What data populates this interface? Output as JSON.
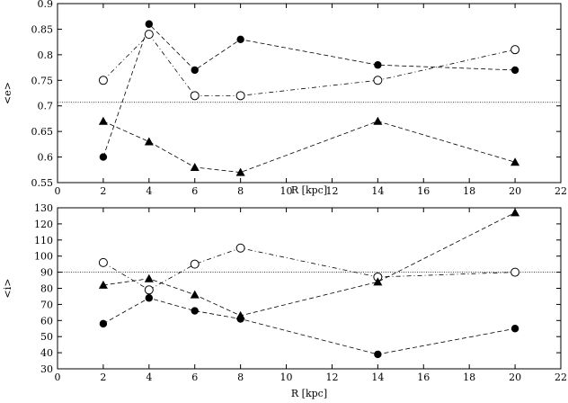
{
  "chart_data": [
    {
      "type": "line",
      "xlabel": "R [kpc]",
      "ylabel": "<e>",
      "xlim": [
        0,
        22
      ],
      "ylim": [
        0.55,
        0.9
      ],
      "xticks": [
        "0",
        "2",
        "4",
        "6",
        "8",
        "10",
        "12",
        "14",
        "16",
        "18",
        "20",
        "22"
      ],
      "yticks": [
        "0.55",
        "0.6",
        "0.65",
        "0.7",
        "0.75",
        "0.8",
        "0.85",
        "0.9"
      ],
      "grid": false,
      "reference_line": 0.707,
      "series": [
        {
          "marker": "filled-circle",
          "x": [
            2,
            4,
            6,
            8,
            14,
            20
          ],
          "y": [
            0.6,
            0.86,
            0.77,
            0.83,
            0.78,
            0.77
          ]
        },
        {
          "marker": "open-circle",
          "x": [
            2,
            4,
            6,
            8,
            14,
            20
          ],
          "y": [
            0.75,
            0.84,
            0.72,
            0.72,
            0.75,
            0.81
          ]
        },
        {
          "marker": "filled-triangle",
          "x": [
            2,
            4,
            6,
            8,
            14,
            20
          ],
          "y": [
            0.67,
            0.63,
            0.58,
            0.57,
            0.67,
            0.59
          ]
        }
      ]
    },
    {
      "type": "line",
      "xlabel": "R [kpc]",
      "ylabel": "<i>",
      "xlim": [
        0,
        22
      ],
      "ylim": [
        30,
        130
      ],
      "xticks": [
        "0",
        "2",
        "4",
        "6",
        "8",
        "10",
        "12",
        "14",
        "16",
        "18",
        "20",
        "22"
      ],
      "yticks": [
        "30",
        "40",
        "50",
        "60",
        "70",
        "80",
        "90",
        "100",
        "110",
        "120",
        "130"
      ],
      "grid": false,
      "reference_line": 90,
      "series": [
        {
          "marker": "filled-circle",
          "x": [
            2,
            4,
            6,
            8,
            14,
            20
          ],
          "y": [
            58,
            74,
            66,
            61,
            39,
            55
          ]
        },
        {
          "marker": "open-circle",
          "x": [
            2,
            4,
            6,
            8,
            14,
            20
          ],
          "y": [
            96,
            79,
            95,
            105,
            87,
            90
          ]
        },
        {
          "marker": "filled-triangle",
          "x": [
            2,
            4,
            6,
            8,
            14,
            20
          ],
          "y": [
            82,
            86,
            76,
            63,
            84,
            127
          ]
        }
      ]
    }
  ]
}
